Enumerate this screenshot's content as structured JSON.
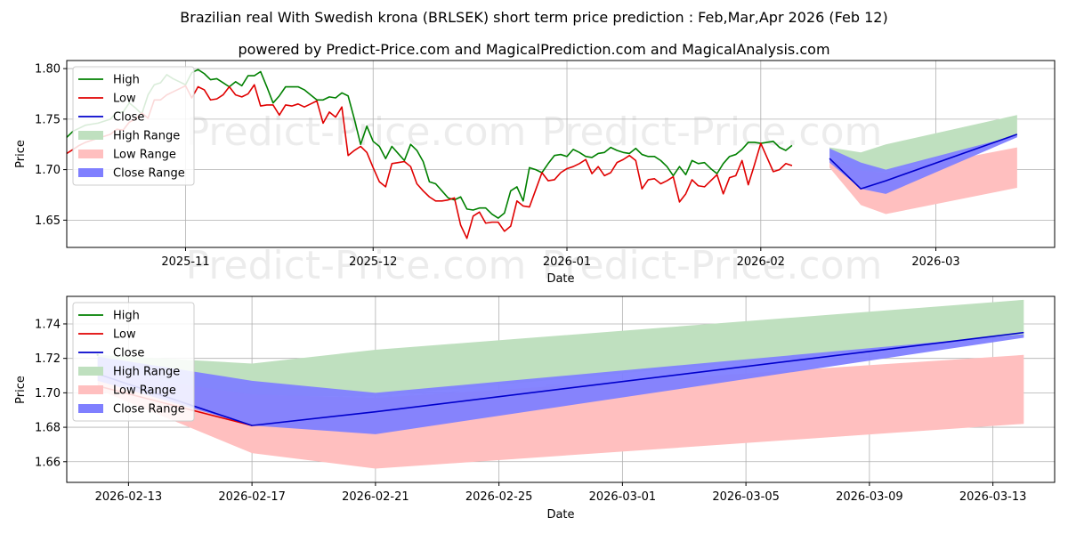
{
  "header": {
    "title": "Brazilian real With Swedish krona (BRLSEK) short term price prediction : Feb,Mar,Apr 2026 (Feb 12)",
    "subtitle": "powered by Predict-Price.com and MagicalPrediction.com and MagicalAnalysis.com"
  },
  "watermark": "Predict-Price.com",
  "colors": {
    "high": "#008000",
    "low": "#e00000",
    "close": "#0000cc",
    "high_range": "#bfe0bf",
    "low_range": "#ffbfbf",
    "close_range": "#7f7fff"
  },
  "legend": [
    "High",
    "Low",
    "Close",
    "High Range",
    "Low Range",
    "Close Range"
  ],
  "chart_data": [
    {
      "type": "line",
      "name": "history-and-forecast",
      "xlabel": "Date",
      "ylabel": "Price",
      "ylim": [
        1.623,
        1.808
      ],
      "x_range": [
        "2025-10-13",
        "2026-03-20"
      ],
      "x_ticks": [
        "2025-11",
        "2025-12",
        "2026-01",
        "2026-02",
        "2026-03"
      ],
      "y_ticks": [
        1.65,
        1.7,
        1.75,
        1.8
      ],
      "y_tick_labels": [
        "1.65",
        "1.70",
        "1.75",
        "1.80"
      ],
      "history_start": "2025-10-13",
      "series": [
        {
          "name": "High",
          "values": [
            1.732,
            1.738,
            1.741,
            1.744,
            1.745,
            1.746,
            1.748,
            1.75,
            1.757,
            1.757,
            1.766,
            1.761,
            1.755,
            1.774,
            1.784,
            1.786,
            1.794,
            1.79,
            1.787,
            1.784,
            1.796,
            1.799,
            1.795,
            1.789,
            1.79,
            1.786,
            1.782,
            1.787,
            1.783,
            1.793,
            1.793,
            1.797,
            1.782,
            1.766,
            1.773,
            1.782,
            1.782,
            1.782,
            1.779,
            1.774,
            1.769,
            1.769,
            1.772,
            1.771,
            1.776,
            1.773,
            1.75,
            1.725,
            1.743,
            1.728,
            1.723,
            1.711,
            1.723,
            1.716,
            1.709,
            1.725,
            1.719,
            1.708,
            1.688,
            1.686,
            1.679,
            1.672,
            1.67,
            1.673,
            1.661,
            1.66,
            1.662,
            1.662,
            1.656,
            1.652,
            1.657,
            1.679,
            1.683,
            1.669,
            1.702,
            1.7,
            1.697,
            1.706,
            1.714,
            1.715,
            1.713,
            1.72,
            1.717,
            1.713,
            1.712,
            1.716,
            1.717,
            1.722,
            1.719,
            1.717,
            1.716,
            1.721,
            1.715,
            1.713,
            1.713,
            1.709,
            1.703,
            1.694,
            1.703,
            1.695,
            1.709,
            1.706,
            1.707,
            1.701,
            1.696,
            1.706,
            1.713,
            1.715,
            1.72,
            1.727,
            1.727,
            1.726,
            1.727,
            1.728,
            1.722,
            1.719,
            1.724
          ]
        },
        {
          "name": "Low",
          "values": [
            1.716,
            1.72,
            1.724,
            1.727,
            1.729,
            1.731,
            1.733,
            1.735,
            1.74,
            1.739,
            1.747,
            1.75,
            1.756,
            1.751,
            1.769,
            1.769,
            1.774,
            1.777,
            1.78,
            1.783,
            1.771,
            1.782,
            1.779,
            1.769,
            1.77,
            1.774,
            1.782,
            1.774,
            1.772,
            1.775,
            1.784,
            1.763,
            1.764,
            1.764,
            1.754,
            1.764,
            1.763,
            1.765,
            1.762,
            1.765,
            1.768,
            1.746,
            1.757,
            1.752,
            1.762,
            1.714,
            1.719,
            1.723,
            1.717,
            1.702,
            1.688,
            1.683,
            1.706,
            1.707,
            1.708,
            1.703,
            1.686,
            1.679,
            1.673,
            1.669,
            1.669,
            1.67,
            1.672,
            1.645,
            1.632,
            1.654,
            1.658,
            1.647,
            1.648,
            1.648,
            1.639,
            1.644,
            1.669,
            1.664,
            1.663,
            1.68,
            1.697,
            1.689,
            1.69,
            1.697,
            1.701,
            1.703,
            1.706,
            1.71,
            1.696,
            1.703,
            1.694,
            1.697,
            1.707,
            1.71,
            1.714,
            1.709,
            1.681,
            1.69,
            1.691,
            1.686,
            1.689,
            1.693,
            1.668,
            1.676,
            1.69,
            1.684,
            1.683,
            1.689,
            1.695,
            1.676,
            1.692,
            1.694,
            1.709,
            1.685,
            1.705,
            1.726,
            1.712,
            1.698,
            1.7,
            1.706,
            1.704
          ]
        },
        {
          "name": "Close",
          "forecast": true,
          "dates": [
            "2026-02-12",
            "2026-02-17",
            "2026-02-21",
            "2026-03-14"
          ],
          "values": [
            1.711,
            1.681,
            1.689,
            1.735
          ]
        },
        {
          "name": "High Range",
          "forecast": true,
          "dates": [
            "2026-02-12",
            "2026-02-17",
            "2026-02-21",
            "2026-03-14"
          ],
          "upper": [
            1.722,
            1.717,
            1.725,
            1.754
          ],
          "lower": [
            1.714,
            1.698,
            1.698,
            1.733
          ]
        },
        {
          "name": "Low Range",
          "forecast": true,
          "dates": [
            "2026-02-12",
            "2026-02-17",
            "2026-02-21",
            "2026-03-14"
          ],
          "upper": [
            1.712,
            1.699,
            1.697,
            1.722
          ],
          "lower": [
            1.702,
            1.665,
            1.656,
            1.682
          ]
        },
        {
          "name": "Close Range",
          "forecast": true,
          "dates": [
            "2026-02-12",
            "2026-02-17",
            "2026-02-21",
            "2026-03-14"
          ],
          "upper": [
            1.721,
            1.707,
            1.7,
            1.734
          ],
          "lower": [
            1.707,
            1.681,
            1.676,
            1.732
          ]
        }
      ]
    },
    {
      "type": "line",
      "name": "forecast-zoom",
      "xlabel": "Date",
      "ylabel": "Price",
      "ylim": [
        1.648,
        1.756
      ],
      "x_range": [
        "2026-02-11",
        "2026-03-15"
      ],
      "x_ticks": [
        "2026-02-13",
        "2026-02-17",
        "2026-02-21",
        "2026-02-25",
        "2026-03-01",
        "2026-03-05",
        "2026-03-09",
        "2026-03-13"
      ],
      "y_ticks": [
        1.66,
        1.68,
        1.7,
        1.72,
        1.74
      ],
      "y_tick_labels": [
        "1.66",
        "1.68",
        "1.70",
        "1.72",
        "1.74"
      ],
      "series": [
        {
          "name": "High",
          "dates": [
            "2026-02-12"
          ],
          "values": [
            1.722
          ]
        },
        {
          "name": "Low",
          "dates": [
            "2026-02-12",
            "2026-02-17"
          ],
          "values": [
            1.704,
            1.681
          ]
        },
        {
          "name": "Close",
          "dates": [
            "2026-02-12",
            "2026-02-17",
            "2026-02-21",
            "2026-03-14"
          ],
          "values": [
            1.711,
            1.681,
            1.689,
            1.735
          ]
        },
        {
          "name": "High Range",
          "dates": [
            "2026-02-12",
            "2026-02-17",
            "2026-02-21",
            "2026-03-14"
          ],
          "upper": [
            1.722,
            1.717,
            1.725,
            1.754
          ],
          "lower": [
            1.714,
            1.698,
            1.698,
            1.733
          ]
        },
        {
          "name": "Low Range",
          "dates": [
            "2026-02-12",
            "2026-02-17",
            "2026-02-21",
            "2026-03-14"
          ],
          "upper": [
            1.712,
            1.699,
            1.697,
            1.722
          ],
          "lower": [
            1.702,
            1.665,
            1.656,
            1.682
          ]
        },
        {
          "name": "Close Range",
          "dates": [
            "2026-02-12",
            "2026-02-17",
            "2026-02-21",
            "2026-03-14"
          ],
          "upper": [
            1.721,
            1.707,
            1.7,
            1.734
          ],
          "lower": [
            1.707,
            1.681,
            1.676,
            1.732
          ]
        }
      ]
    }
  ]
}
